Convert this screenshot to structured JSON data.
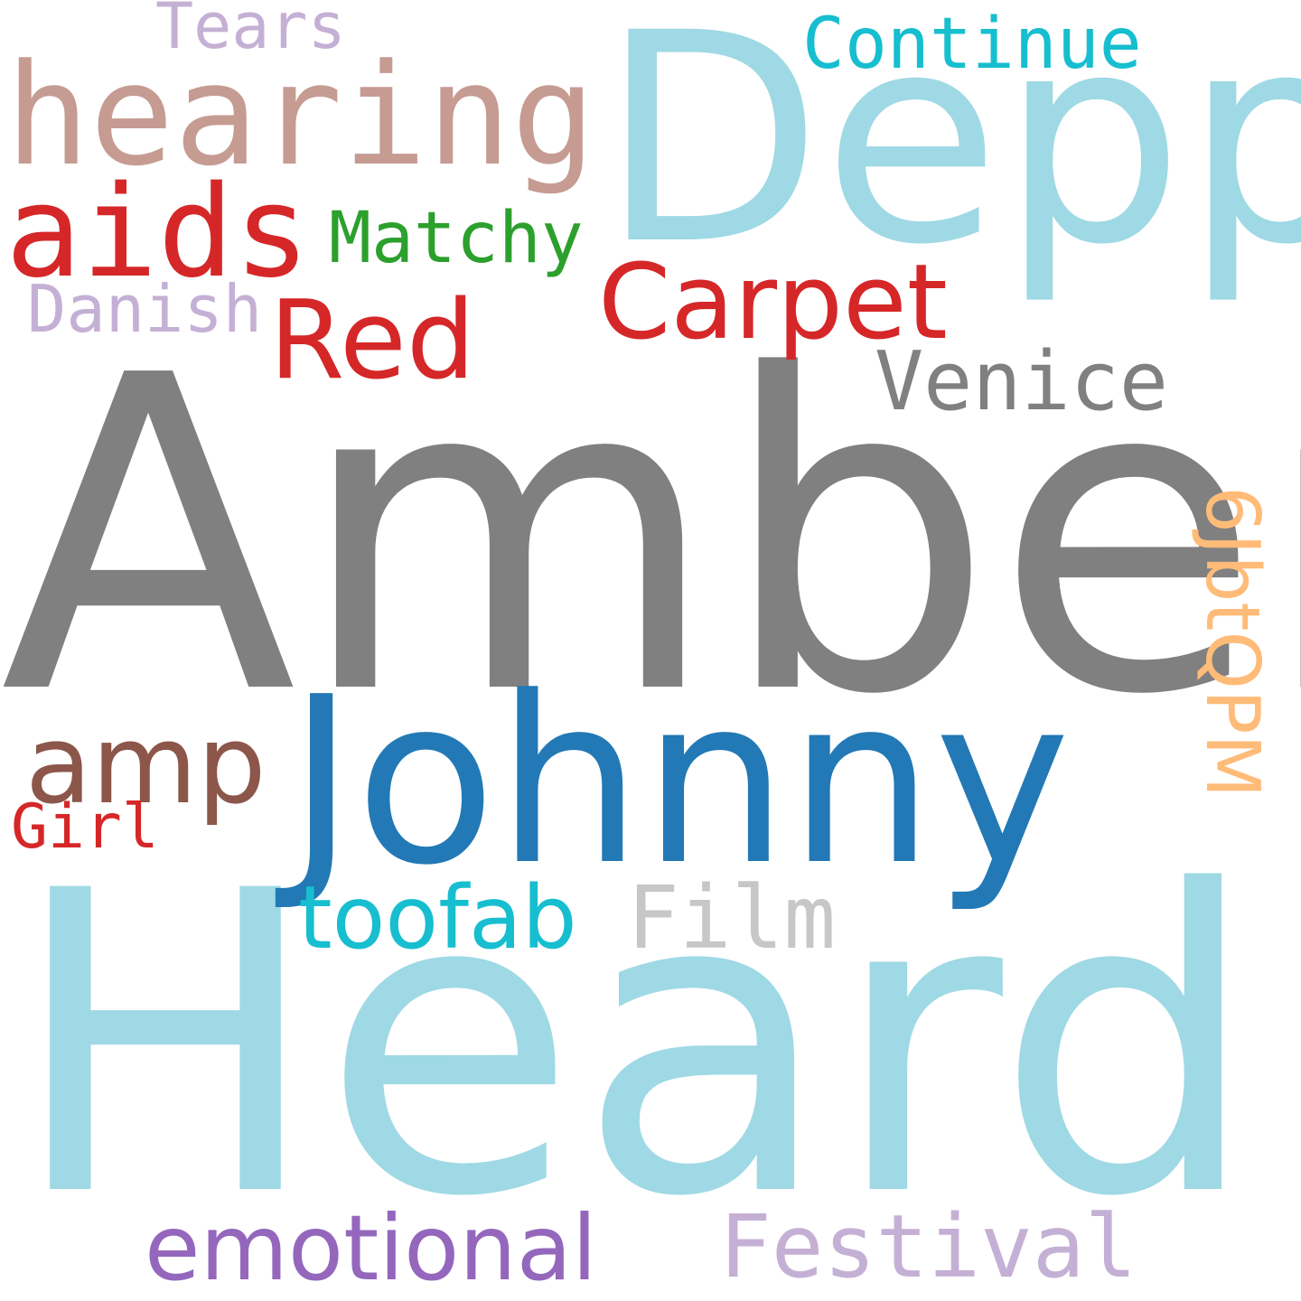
{
  "words": [
    {
      "text": "Amber",
      "color": "#808080"
    },
    {
      "text": "Heard",
      "color": "#9fd9e5"
    },
    {
      "text": "Depp",
      "color": "#9fd9e5"
    },
    {
      "text": "Johnny",
      "color": "#2279b5"
    },
    {
      "text": "hearing",
      "color": "#c59b92"
    },
    {
      "text": "aids",
      "color": "#d62728"
    },
    {
      "text": "Red",
      "color": "#d62728"
    },
    {
      "text": "Carpet",
      "color": "#d62728"
    },
    {
      "text": "Matchy",
      "color": "#2ca02c"
    },
    {
      "text": "Venice",
      "color": "#808080"
    },
    {
      "text": "Continue",
      "color": "#17becf"
    },
    {
      "text": "Tears",
      "color": "#c5b0d5"
    },
    {
      "text": "Danish",
      "color": "#c5b0d5"
    },
    {
      "text": "amp",
      "color": "#8c564b"
    },
    {
      "text": "Girl",
      "color": "#d62728"
    },
    {
      "text": "toofab",
      "color": "#17becf"
    },
    {
      "text": "Film",
      "color": "#c7c7c7"
    },
    {
      "text": "emotional",
      "color": "#9467bd"
    },
    {
      "text": "Festival",
      "color": "#c5b0d5"
    },
    {
      "text": "6JbtQPM",
      "color": "#ffbb78"
    }
  ]
}
